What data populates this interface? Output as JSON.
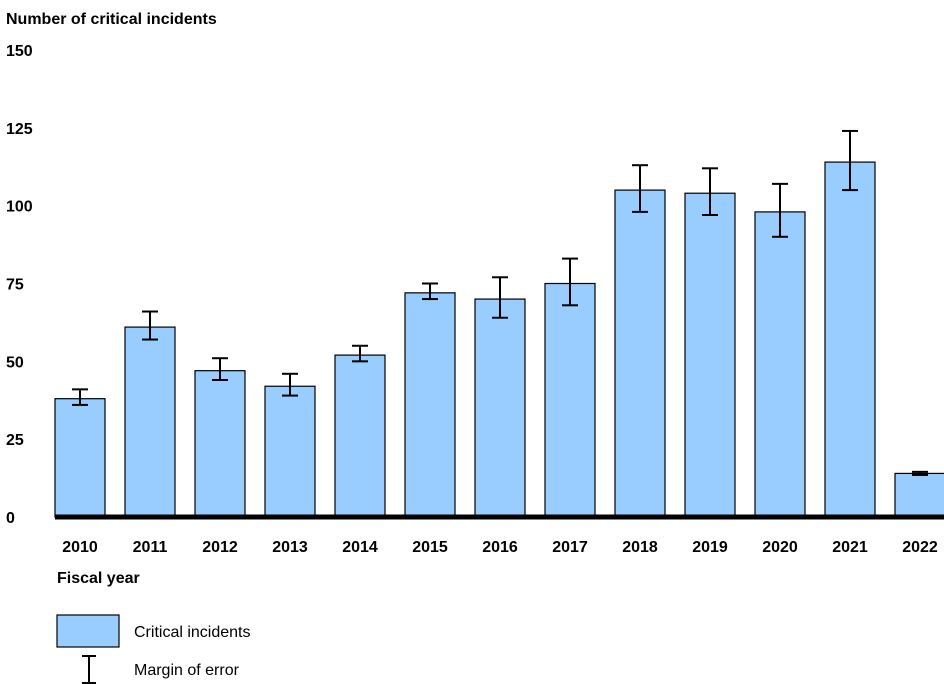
{
  "chart_data": {
    "type": "bar",
    "ylabel": "Number of critical incidents",
    "xlabel": "Fiscal year",
    "ylim": [
      0,
      150
    ],
    "yticks": [
      0,
      25,
      50,
      75,
      100,
      125,
      150
    ],
    "grid": false,
    "legend_position": "bottom-left",
    "categories": [
      "2010",
      "2011",
      "2012",
      "2013",
      "2014",
      "2015",
      "2016",
      "2017",
      "2018",
      "2019",
      "2020",
      "2021",
      "2022"
    ],
    "series": [
      {
        "name": "Critical incidents",
        "values": [
          38,
          61,
          47,
          42,
          52,
          72,
          70,
          75,
          105,
          104,
          98,
          114,
          14
        ],
        "error_low": [
          36,
          57,
          44,
          39,
          50,
          70,
          64,
          68,
          98,
          97,
          90,
          105,
          13.5
        ],
        "error_high": [
          41,
          66,
          51,
          46,
          55,
          75,
          77,
          83,
          113,
          112,
          107,
          124,
          14.5
        ]
      }
    ],
    "legend": {
      "bar_label": "Critical incidents",
      "error_label": "Margin of error"
    },
    "colors": {
      "bar_fill": "#99ccff",
      "bar_stroke": "#000000",
      "axis": "#000000"
    }
  }
}
